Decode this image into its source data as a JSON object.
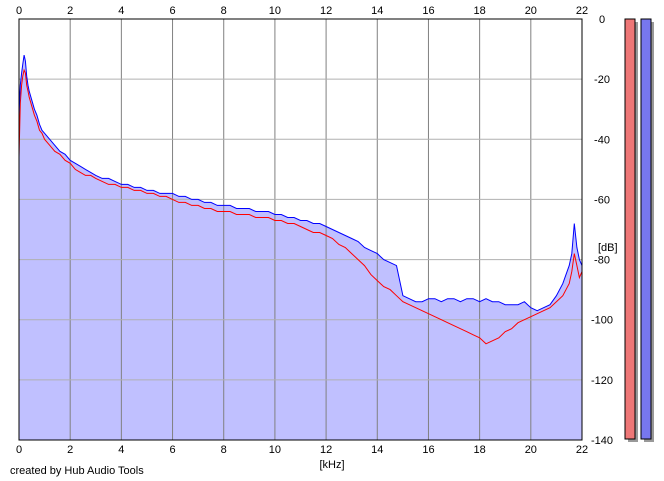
{
  "chart_data": {
    "type": "area",
    "x_unit_label": "[kHz]",
    "y_unit_label": "[dB]",
    "xlim": [
      0,
      22
    ],
    "ylim": [
      -140,
      0
    ],
    "x_ticks": [
      "0",
      "2",
      "4",
      "6",
      "8",
      "10",
      "12",
      "14",
      "16",
      "18",
      "20",
      "22"
    ],
    "y_ticks": [
      "0",
      "-20",
      "-40",
      "-60",
      "-80",
      "-100",
      "-120",
      "-140"
    ],
    "grid": true,
    "series": [
      {
        "color": "#ff0000",
        "x": [
          0.0,
          0.05,
          0.1,
          0.15,
          0.2,
          0.25,
          0.3,
          0.35,
          0.4,
          0.5,
          0.6,
          0.7,
          0.8,
          0.9,
          1.0,
          1.2,
          1.4,
          1.6,
          1.8,
          2.0,
          2.2,
          2.4,
          2.6,
          2.8,
          3.0,
          3.25,
          3.5,
          3.75,
          4.0,
          4.25,
          4.5,
          4.75,
          5.0,
          5.25,
          5.5,
          5.75,
          6.0,
          6.25,
          6.5,
          6.75,
          7.0,
          7.25,
          7.5,
          7.75,
          8.0,
          8.25,
          8.5,
          8.75,
          9.0,
          9.25,
          9.5,
          9.75,
          10.0,
          10.25,
          10.5,
          10.75,
          11.0,
          11.25,
          11.5,
          11.75,
          12.0,
          12.25,
          12.5,
          12.75,
          13.0,
          13.25,
          13.5,
          13.75,
          14.0,
          14.25,
          14.5,
          14.75,
          15.0,
          15.25,
          15.5,
          15.75,
          16.0,
          16.25,
          16.5,
          16.75,
          17.0,
          17.25,
          17.5,
          17.75,
          18.0,
          18.25,
          18.5,
          18.75,
          19.0,
          19.25,
          19.5,
          19.75,
          20.0,
          20.25,
          20.5,
          20.75,
          21.0,
          21.25,
          21.5,
          21.6,
          21.7,
          21.8,
          21.9,
          22.0
        ],
        "values": [
          -46,
          -28,
          -22,
          -19,
          -17,
          -18,
          -22,
          -24,
          -26,
          -29,
          -32,
          -34,
          -37,
          -38,
          -40,
          -42,
          -44,
          -45,
          -47,
          -48,
          -50,
          -51,
          -52,
          -52,
          -53,
          -54,
          -55,
          -55,
          -56,
          -56,
          -57,
          -57,
          -58,
          -58,
          -59,
          -59,
          -60,
          -61,
          -61,
          -62,
          -62,
          -63,
          -63,
          -64,
          -64,
          -64,
          -65,
          -65,
          -65,
          -66,
          -66,
          -66,
          -67,
          -67,
          -68,
          -68,
          -69,
          -70,
          -71,
          -71,
          -72,
          -73,
          -75,
          -76,
          -78,
          -80,
          -82,
          -85,
          -87,
          -89,
          -90,
          -92,
          -94,
          -95,
          -96,
          -97,
          -98,
          -99,
          -100,
          -101,
          -102,
          -103,
          -104,
          -105,
          -106,
          -108,
          -107,
          -106,
          -104,
          -103,
          -101,
          -100,
          -99,
          -98,
          -97,
          -96,
          -94,
          -92,
          -88,
          -84,
          -78,
          -82,
          -86,
          -84
        ]
      },
      {
        "color": "#0000ff",
        "x": [
          0.0,
          0.05,
          0.1,
          0.15,
          0.2,
          0.25,
          0.3,
          0.35,
          0.4,
          0.5,
          0.6,
          0.7,
          0.8,
          0.9,
          1.0,
          1.2,
          1.4,
          1.6,
          1.8,
          2.0,
          2.2,
          2.4,
          2.6,
          2.8,
          3.0,
          3.25,
          3.5,
          3.75,
          4.0,
          4.25,
          4.5,
          4.75,
          5.0,
          5.25,
          5.5,
          5.75,
          6.0,
          6.25,
          6.5,
          6.75,
          7.0,
          7.25,
          7.5,
          7.75,
          8.0,
          8.25,
          8.5,
          8.75,
          9.0,
          9.25,
          9.5,
          9.75,
          10.0,
          10.25,
          10.5,
          10.75,
          11.0,
          11.25,
          11.5,
          11.75,
          12.0,
          12.25,
          12.5,
          12.75,
          13.0,
          13.25,
          13.5,
          13.75,
          14.0,
          14.25,
          14.5,
          14.75,
          15.0,
          15.25,
          15.5,
          15.75,
          16.0,
          16.25,
          16.5,
          16.75,
          17.0,
          17.25,
          17.5,
          17.75,
          18.0,
          18.25,
          18.5,
          18.75,
          19.0,
          19.25,
          19.5,
          19.75,
          20.0,
          20.25,
          20.5,
          20.75,
          21.0,
          21.25,
          21.5,
          21.6,
          21.7,
          21.8,
          21.9,
          22.0
        ],
        "values": [
          -32,
          -22,
          -18,
          -15,
          -12,
          -14,
          -19,
          -22,
          -24,
          -27,
          -30,
          -32,
          -35,
          -37,
          -38,
          -40,
          -42,
          -44,
          -45,
          -47,
          -48,
          -49,
          -50,
          -51,
          -52,
          -53,
          -53,
          -54,
          -55,
          -55,
          -56,
          -56,
          -57,
          -57,
          -58,
          -58,
          -58,
          -59,
          -59,
          -60,
          -60,
          -61,
          -61,
          -62,
          -62,
          -62,
          -63,
          -63,
          -63,
          -64,
          -64,
          -64,
          -65,
          -65,
          -66,
          -66,
          -67,
          -67,
          -68,
          -68,
          -69,
          -70,
          -71,
          -72,
          -73,
          -74,
          -76,
          -77,
          -78,
          -80,
          -81,
          -82,
          -92,
          -93,
          -94,
          -94,
          -93,
          -93,
          -94,
          -93,
          -93,
          -94,
          -93,
          -93,
          -94,
          -93,
          -94,
          -94,
          -95,
          -95,
          -95,
          -94,
          -96,
          -97,
          -96,
          -95,
          -92,
          -88,
          -82,
          -78,
          -68,
          -76,
          -80,
          -82
        ]
      }
    ]
  },
  "credit": "created by Hub Audio Tools",
  "level_meter": {
    "left_color": "#ee7777",
    "right_color": "#7777ee"
  }
}
